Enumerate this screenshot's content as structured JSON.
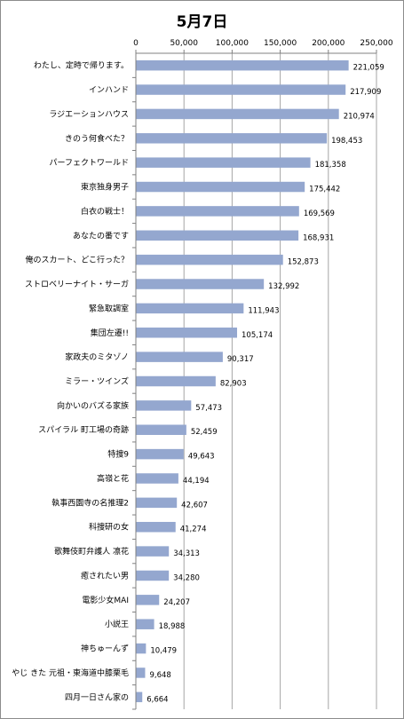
{
  "chart_data": {
    "type": "bar",
    "orientation": "horizontal",
    "title": "5月7日",
    "xlim": [
      0,
      250000
    ],
    "xticks": [
      "0",
      "50,000",
      "100,000",
      "150,000",
      "200,000",
      "250,000"
    ],
    "xtick_values": [
      0,
      50000,
      100000,
      150000,
      200000,
      250000
    ],
    "grid": true,
    "bar_color": "#94a7cf",
    "categories": [
      "わたし、定時で帰ります。",
      "インハンド",
      "ラジエーションハウス",
      "きのう何食べた？",
      "パーフェクトワールド",
      "東京独身男子",
      "白衣の戦士！",
      "あなたの番です",
      "俺のスカート、どこ行った？",
      "ストロベリーナイト・サーガ",
      "緊急取調室",
      "集団左遷!!",
      "家政夫のミタゾノ",
      "ミラー・ツインズ",
      "向かいのバズる家族",
      "スパイラル 町工場の奇跡",
      "特捜9",
      "高嶺と花",
      "執事西園寺の名推理2",
      "科捜研の女",
      "歌舞伎町弁護人 凛花",
      "癒されたい男",
      "電影少女MAI",
      "小説王",
      "神ちゅーんず",
      "やじ きた 元祖・東海道中膝栗毛",
      "四月一日さん家の"
    ],
    "values": [
      221059,
      217909,
      210974,
      198453,
      181358,
      175442,
      169569,
      168931,
      152873,
      132992,
      111943,
      105174,
      90317,
      82903,
      57473,
      52459,
      49643,
      44194,
      42607,
      41274,
      34313,
      34280,
      24207,
      18988,
      10479,
      9648,
      6664
    ],
    "value_labels": [
      "221,059",
      "217,909",
      "210,974",
      "198,453",
      "181,358",
      "175,442",
      "169,569",
      "168,931",
      "152,873",
      "132,992",
      "111,943",
      "105,174",
      "90,317",
      "82,903",
      "57,473",
      "52,459",
      "49,643",
      "44,194",
      "42,607",
      "41,274",
      "34,313",
      "34,280",
      "24,207",
      "18,988",
      "10,479",
      "9,648",
      "6,664"
    ]
  }
}
